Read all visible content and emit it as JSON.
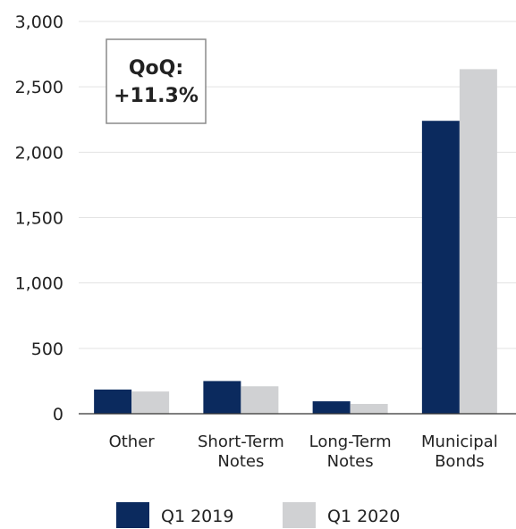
{
  "chart_data": {
    "type": "bar",
    "categories": [
      [
        "Other"
      ],
      [
        "Short-Term",
        "Notes"
      ],
      [
        "Long-Term",
        "Notes"
      ],
      [
        "Municipal",
        "Bonds"
      ]
    ],
    "series": [
      {
        "name": "Q1 2019",
        "color": "#0b2a5e",
        "values": [
          185,
          250,
          95,
          2240
        ]
      },
      {
        "name": "Q1 2020",
        "color": "#d0d1d3",
        "values": [
          170,
          210,
          75,
          2635
        ]
      }
    ],
    "ylim": [
      0,
      3000
    ],
    "yticks": [
      "0",
      "500",
      "1,000",
      "1,500",
      "2,000",
      "2,500",
      "3,000"
    ],
    "ytick_values": [
      0,
      500,
      1000,
      1500,
      2000,
      2500,
      3000
    ],
    "grid": true,
    "legend_position": "bottom",
    "annotation": [
      "QoQ:",
      "+11.3%"
    ]
  }
}
